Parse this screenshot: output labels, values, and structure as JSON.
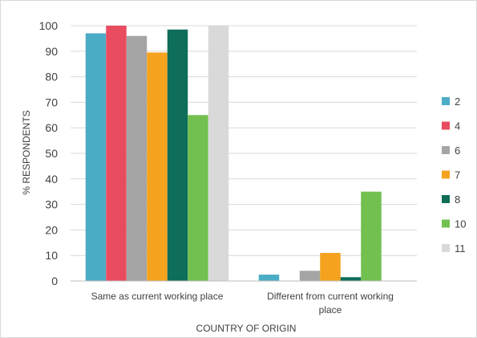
{
  "chart_data": {
    "type": "bar",
    "title": "",
    "xlabel": "COUNTRY OF ORIGIN",
    "ylabel": "% RESPONDENTS",
    "ylim": [
      0,
      100
    ],
    "yticks": [
      "0",
      "10",
      "20",
      "30",
      "40",
      "50",
      "60",
      "70",
      "80",
      "90",
      "100"
    ],
    "grid": "horizontal",
    "legend_position": "right",
    "categories": [
      [
        "Same as current working place"
      ],
      [
        "Different from current working",
        "place"
      ]
    ],
    "series": [
      {
        "name": "2",
        "color": "#4bacc6",
        "values": [
          97,
          2.5
        ]
      },
      {
        "name": "4",
        "color": "#e84c5e",
        "values": [
          100,
          0
        ]
      },
      {
        "name": "6",
        "color": "#a5a5a5",
        "values": [
          96,
          4
        ]
      },
      {
        "name": "7",
        "color": "#f5a21f",
        "values": [
          89.5,
          11
        ]
      },
      {
        "name": "8",
        "color": "#0e6e5a",
        "values": [
          98.5,
          1.5
        ]
      },
      {
        "name": "10",
        "color": "#72c050",
        "values": [
          65,
          35
        ]
      },
      {
        "name": "11",
        "color": "#d9d9d9",
        "values": [
          100,
          0
        ]
      }
    ]
  }
}
